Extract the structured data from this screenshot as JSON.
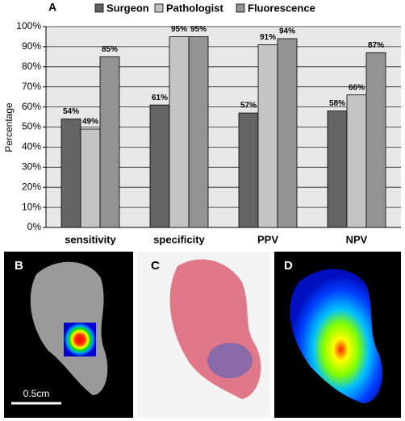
{
  "chart_data": {
    "type": "bar",
    "y_label": "Percentage",
    "categories": [
      "sensitivity",
      "specificity",
      "PPV",
      "NPV"
    ],
    "series": [
      {
        "name": "Surgeon",
        "color": "#646464",
        "values": [
          54,
          61,
          57,
          58
        ],
        "value_labels": [
          "54%",
          "61%",
          "57%",
          "58%"
        ]
      },
      {
        "name": "Pathologist",
        "color": "#c4c4c4",
        "values": [
          49,
          95,
          91,
          66
        ],
        "value_labels": [
          "49%",
          "95%",
          "91%",
          "66%"
        ]
      },
      {
        "name": "Fluorescence",
        "color": "#939393",
        "values": [
          85,
          95,
          94,
          87
        ],
        "value_labels": [
          "85%",
          "95%",
          "94%",
          "87%"
        ]
      }
    ],
    "ylim": [
      0,
      100
    ],
    "yticks": [
      {
        "value": 0,
        "label": "0%"
      },
      {
        "value": 10,
        "label": "10%"
      },
      {
        "value": 20,
        "label": "20%"
      },
      {
        "value": 30,
        "label": "30%"
      },
      {
        "value": 40,
        "label": "40%"
      },
      {
        "value": 50,
        "label": "50%"
      },
      {
        "value": 60,
        "label": "60%"
      },
      {
        "value": 70,
        "label": "70%"
      },
      {
        "value": 80,
        "label": "80%"
      },
      {
        "value": 90,
        "label": "90%"
      },
      {
        "value": 100,
        "label": "100%"
      }
    ],
    "grid": true
  },
  "panels": {
    "labels": [
      "A",
      "B",
      "C",
      "D"
    ],
    "scale_bar": "0.5cm"
  }
}
